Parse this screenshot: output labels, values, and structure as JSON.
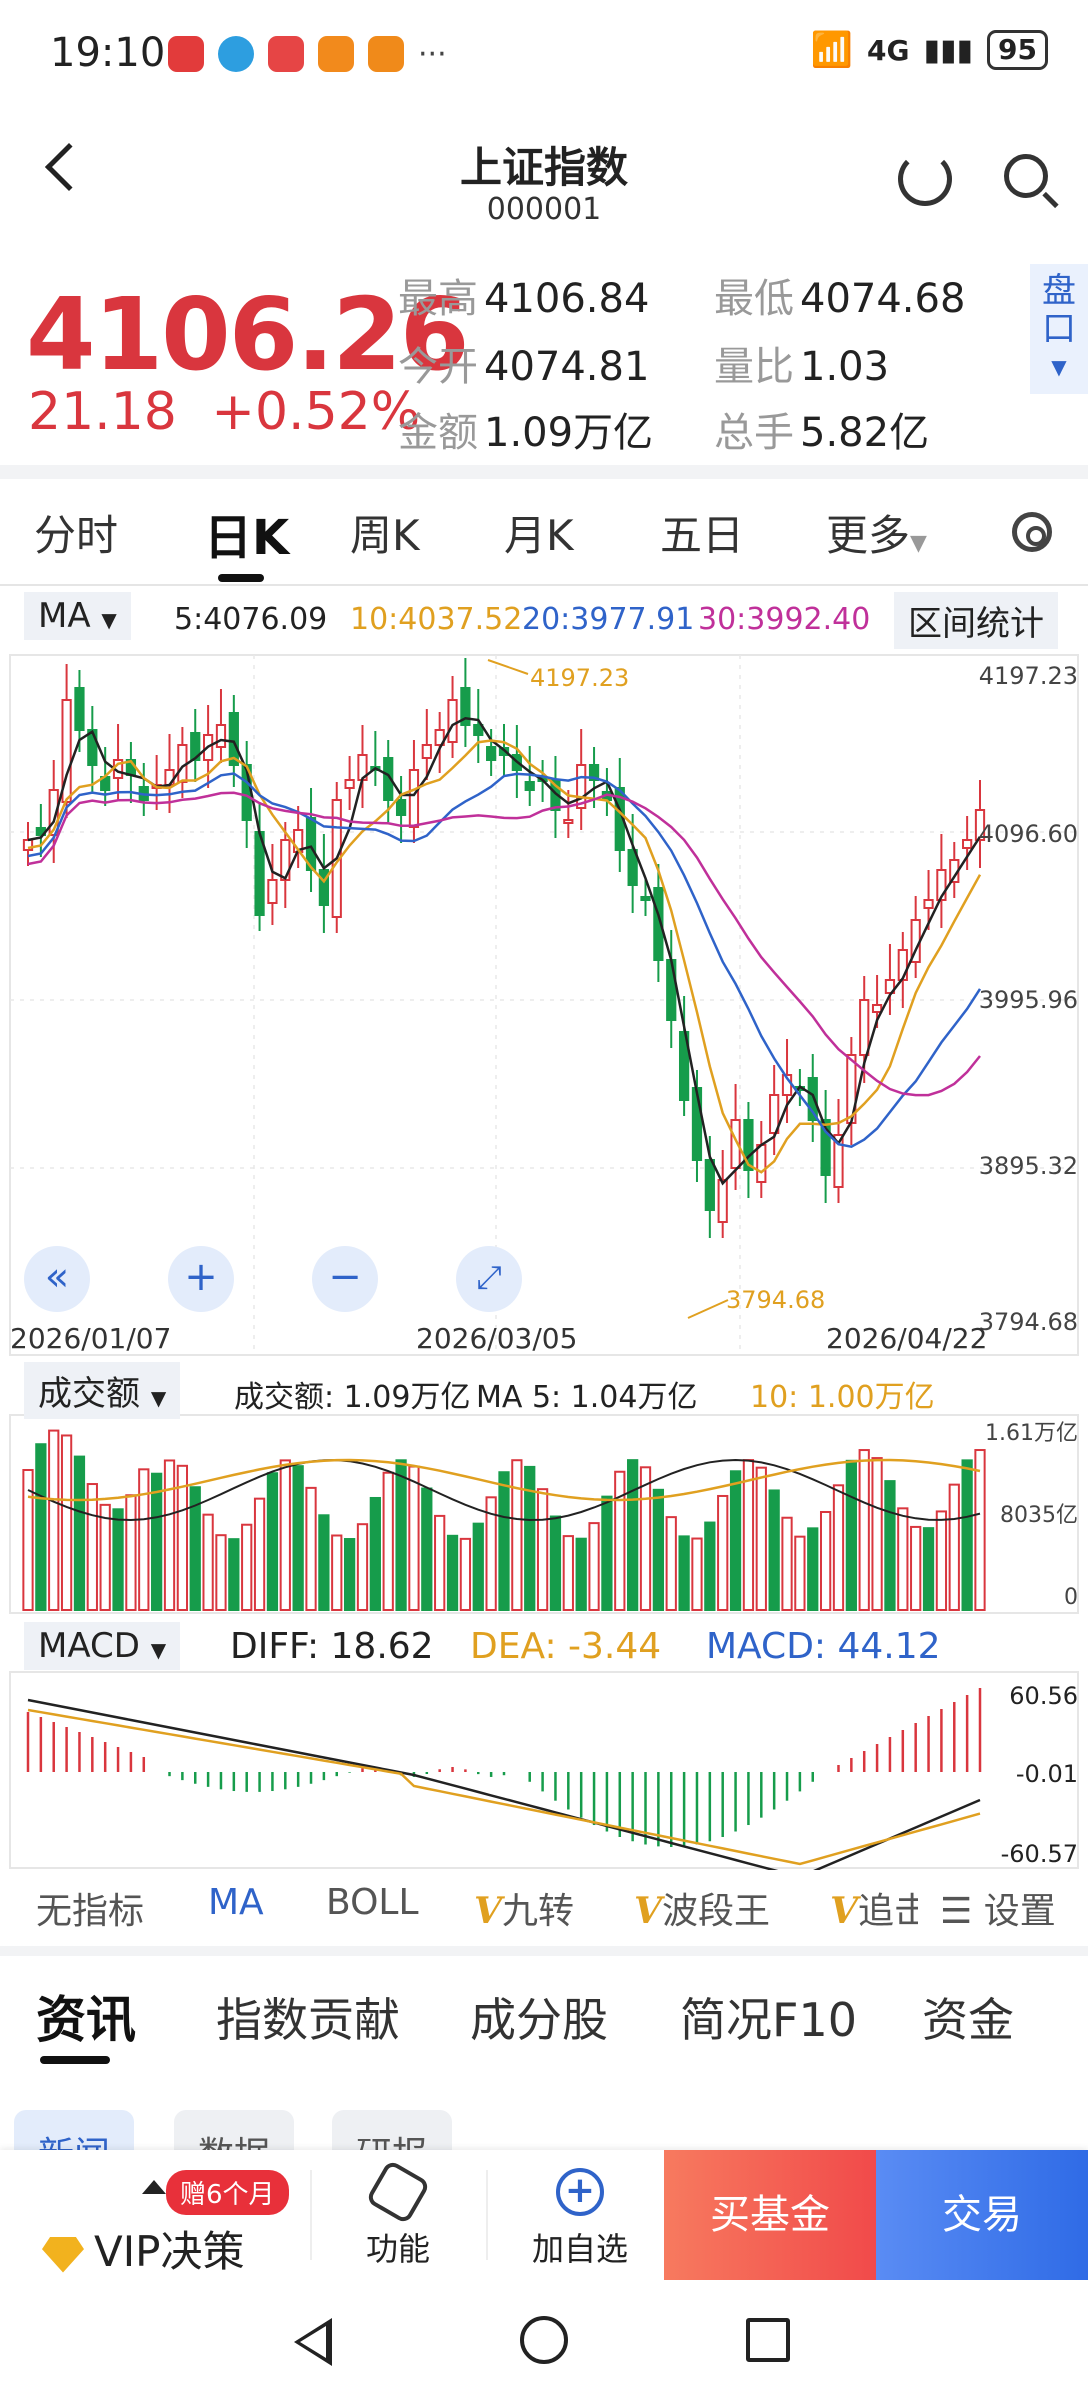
{
  "status": {
    "time": "19:10",
    "battery": "95",
    "net": "4G",
    "wifi_label": "6"
  },
  "header": {
    "title": "上证指数",
    "code": "000001"
  },
  "quote": {
    "price": "4106.26",
    "change": "21.18",
    "change_pct": "+0.52%",
    "stats": [
      {
        "k": "最高",
        "v": "4106.84"
      },
      {
        "k": "最低",
        "v": "4074.68"
      },
      {
        "k": "今开",
        "v": "4074.81"
      },
      {
        "k": "量比",
        "v": "1.03"
      },
      {
        "k": "金额",
        "v": "1.09万亿"
      },
      {
        "k": "总手",
        "v": "5.82亿"
      }
    ],
    "pankou": "盘口"
  },
  "period_tabs": [
    "分时",
    "日K",
    "周K",
    "月K",
    "五日",
    "更多"
  ],
  "ma": {
    "selector": "MA",
    "ma5": "5:4076.09",
    "ma10": "10:4037.52",
    "ma20": "20:3977.91",
    "ma30": "30:3992.40",
    "range_stats": "区间统计",
    "colors": {
      "ma5": "#222222",
      "ma10": "#e0a020",
      "ma20": "#2f63c9",
      "ma30": "#c0309a"
    }
  },
  "kline": {
    "y_labels": [
      "4197.23",
      "4096.60",
      "3995.96",
      "3895.32",
      "3794.68"
    ],
    "high_marker": "4197.23",
    "low_marker": "3794.68",
    "dates": [
      "2026/01/07",
      "2026/03/05",
      "2026/04/22"
    ]
  },
  "volume": {
    "selector": "成交额",
    "amount": "成交额: 1.09万亿",
    "ma5": "MA 5: 1.04万亿",
    "ma10": "10: 1.00万亿",
    "y_labels": [
      "1.61万亿",
      "8035亿",
      "0"
    ]
  },
  "macd": {
    "selector": "MACD",
    "diff": "DIFF: 18.62",
    "dea": "DEA: -3.44",
    "macd": "MACD: 44.12",
    "y_labels": [
      "60.56",
      "-0.01",
      "-60.57"
    ]
  },
  "indicator_tabs": [
    "无指标",
    "MA",
    "BOLL",
    "九转",
    "波段王",
    "追击",
    "设置"
  ],
  "news_tabs": [
    "资讯",
    "指数贡献",
    "成分股",
    "简况F10",
    "资金"
  ],
  "sub_tabs": [
    "新闻",
    "数据",
    "研报"
  ],
  "bottom": {
    "vip": "VIP决策",
    "gift": "赠6个月",
    "func": "功能",
    "add": "加自选",
    "buy_fund": "买基金",
    "trade": "交易"
  },
  "chart_data": {
    "type": "candlestick",
    "title": "上证指数",
    "ylim": [
      3794.68,
      4197.23
    ],
    "x_ticks": [
      "2026/01/07",
      "2026/03/05",
      "2026/04/22"
    ],
    "high": 4197.23,
    "low": 3794.68,
    "last": 4106.26
  }
}
